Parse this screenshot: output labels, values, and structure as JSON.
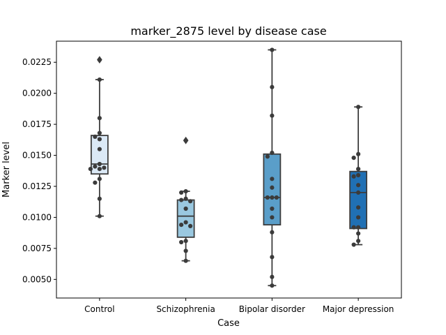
{
  "chart_data": {
    "type": "box",
    "title": "marker_2875 level by disease case",
    "xlabel": "Case",
    "ylabel": "Marker level",
    "ylim": [
      0.0035,
      0.0242
    ],
    "yticks": [
      0.005,
      0.0075,
      0.01,
      0.0125,
      0.015,
      0.0175,
      0.02,
      0.0225
    ],
    "ytick_labels": [
      "0.0050",
      "0.0075",
      "0.0100",
      "0.0125",
      "0.0150",
      "0.0175",
      "0.0200",
      "0.0225"
    ],
    "categories": [
      "Control",
      "Schizophrenia",
      "Bipolar disorder",
      "Major depression"
    ],
    "colors": [
      "#dbe9f6",
      "#9ac8e0",
      "#5a9ec9",
      "#2070b4"
    ],
    "edge_color": "#3d3d3d",
    "point_color": "#3b3b3b",
    "boxes": [
      {
        "category": "Control",
        "whisker_low": 0.0101,
        "q1": 0.0135,
        "median": 0.0143,
        "q3": 0.0166,
        "whisker_high": 0.0211,
        "outliers": [
          0.0227
        ]
      },
      {
        "category": "Schizophrenia",
        "whisker_low": 0.0065,
        "q1": 0.0084,
        "median": 0.0101,
        "q3": 0.0114,
        "whisker_high": 0.0121,
        "outliers": [
          0.0162
        ]
      },
      {
        "category": "Bipolar disorder",
        "whisker_low": 0.0045,
        "q1": 0.0094,
        "median": 0.0116,
        "q3": 0.0151,
        "whisker_high": 0.0235,
        "outliers": []
      },
      {
        "category": "Major depression",
        "whisker_low": 0.0078,
        "q1": 0.0091,
        "median": 0.012,
        "q3": 0.0137,
        "whisker_high": 0.0189,
        "outliers": []
      }
    ],
    "points": [
      {
        "category": "Control",
        "values": [
          0.0227,
          0.0211,
          0.018,
          0.0168,
          0.0165,
          0.0163,
          0.0155,
          0.0143,
          0.0141,
          0.014,
          0.0139,
          0.0139,
          0.0131,
          0.0128,
          0.0115,
          0.0101
        ]
      },
      {
        "category": "Schizophrenia",
        "values": [
          0.0162,
          0.0121,
          0.012,
          0.0115,
          0.0114,
          0.0113,
          0.0107,
          0.0096,
          0.0094,
          0.0093,
          0.0081,
          0.008,
          0.0073,
          0.0065
        ]
      },
      {
        "category": "Bipolar disorder",
        "values": [
          0.0235,
          0.0205,
          0.0182,
          0.0152,
          0.0149,
          0.0131,
          0.0124,
          0.0116,
          0.0116,
          0.0116,
          0.0107,
          0.01,
          0.0088,
          0.0068,
          0.0052,
          0.0045
        ]
      },
      {
        "category": "Major depression",
        "values": [
          0.0189,
          0.0151,
          0.0148,
          0.0139,
          0.0134,
          0.0133,
          0.0126,
          0.012,
          0.0108,
          0.01,
          0.0092,
          0.0092,
          0.0087,
          0.0081,
          0.0078
        ]
      }
    ]
  }
}
